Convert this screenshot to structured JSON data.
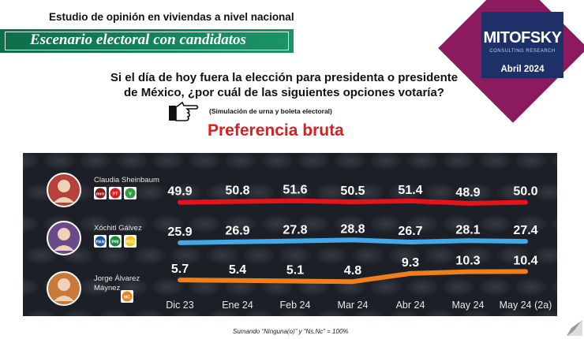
{
  "header": {
    "study": "Estudio de opinión en viviendas a nivel nacional",
    "banner": "Escenario electoral con candidatos"
  },
  "logo": {
    "name": "MITOFSKY",
    "tagline": "CONSULTING RESEARCH",
    "date": "Abril 2024",
    "colors": {
      "diamond": "#8b1a5e",
      "box": "#1e3068"
    }
  },
  "question": {
    "line1": "Si el día de hoy fuera la elección para presidenta o presidente",
    "line2": "de México, ¿por cuál de las siguientes opciones votaría?",
    "note": "(Simulación de urna y boleta electoral)",
    "pointer_icon": "pointing-hand-icon"
  },
  "subtitle": "Preferencia bruta",
  "footnote": "Sumando “Ninguna(o)” y “Ns,Nc” = 100%",
  "candidates": [
    {
      "name": "Claudia Sheinbaum",
      "parties": [
        "morena",
        "PT",
        "PVEM"
      ]
    },
    {
      "name": "Xóchitl Gálvez",
      "parties": [
        "PAN",
        "PRI",
        "PRD"
      ]
    },
    {
      "name": "Jorge Álvarez Máynez",
      "parties": [
        "MC"
      ]
    }
  ],
  "chart_data": {
    "type": "line",
    "title": "Preferencia bruta",
    "xlabel": "",
    "ylabel": "",
    "categories": [
      "Dic 23",
      "Ene 24",
      "Feb 24",
      "Mar 24",
      "Abr 24",
      "May 24",
      "May 24 (2a)"
    ],
    "series": [
      {
        "name": "Claudia Sheinbaum",
        "values": [
          49.9,
          50.8,
          51.6,
          50.5,
          51.4,
          48.9,
          50.0
        ],
        "color": "#e8121c"
      },
      {
        "name": "Xóchitl Gálvez",
        "values": [
          25.9,
          26.9,
          27.8,
          28.8,
          26.7,
          28.1,
          27.4
        ],
        "color": "#3fa9ea"
      },
      {
        "name": "Jorge Álvarez Máynez",
        "values": [
          5.7,
          5.4,
          5.1,
          4.8,
          9.3,
          10.3,
          10.4
        ],
        "color": "#f07f1b"
      }
    ],
    "grid": false,
    "background": "#1c1f26"
  }
}
